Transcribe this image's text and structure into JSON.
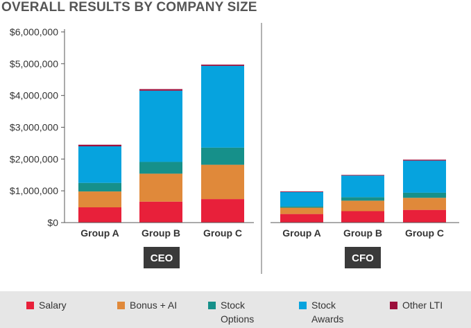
{
  "title": "OVERALL RESULTS BY COMPANY SIZE",
  "chart_data": {
    "type": "bar",
    "stacked": true,
    "categories": [
      "Group A",
      "Group B",
      "Group C"
    ],
    "groups": [
      {
        "name": "CEO",
        "series": [
          {
            "name": "Salary",
            "values": [
              480000,
              660000,
              740000
            ]
          },
          {
            "name": "Bonus + AI",
            "values": [
              500000,
              880000,
              1080000
            ]
          },
          {
            "name": "Stock Options",
            "values": [
              270000,
              370000,
              540000
            ]
          },
          {
            "name": "Stock Awards",
            "values": [
              1150000,
              2240000,
              2570000
            ]
          },
          {
            "name": "Other LTI",
            "values": [
              50000,
              50000,
              40000
            ]
          }
        ]
      },
      {
        "name": "CFO",
        "series": [
          {
            "name": "Salary",
            "values": [
              270000,
              360000,
              400000
            ]
          },
          {
            "name": "Bonus + AI",
            "values": [
              200000,
              330000,
              380000
            ]
          },
          {
            "name": "Stock Options",
            "values": [
              40000,
              110000,
              160000
            ]
          },
          {
            "name": "Stock Awards",
            "values": [
              450000,
              680000,
              1010000
            ]
          },
          {
            "name": "Other LTI",
            "values": [
              20000,
              20000,
              30000
            ]
          }
        ]
      }
    ],
    "y_ticks": [
      "$0",
      "$1,000,000",
      "$2,000,000",
      "$3,000,000",
      "$4,000,000",
      "$5,000,000",
      "$6,000,000"
    ],
    "ylim": [
      0,
      6000000
    ],
    "legend_position": "bottom",
    "colors": [
      "#e8203a",
      "#e0893a",
      "#16908a",
      "#06a3de",
      "#9c0f3c"
    ]
  },
  "legend": [
    {
      "label": "Salary",
      "color": "#e8203a"
    },
    {
      "label": "Bonus + AI",
      "color": "#e0893a"
    },
    {
      "label": "Stock Options",
      "color": "#16908a"
    },
    {
      "label": "Stock Awards",
      "color": "#06a3de"
    },
    {
      "label": "Other LTI",
      "color": "#9c0f3c"
    }
  ]
}
